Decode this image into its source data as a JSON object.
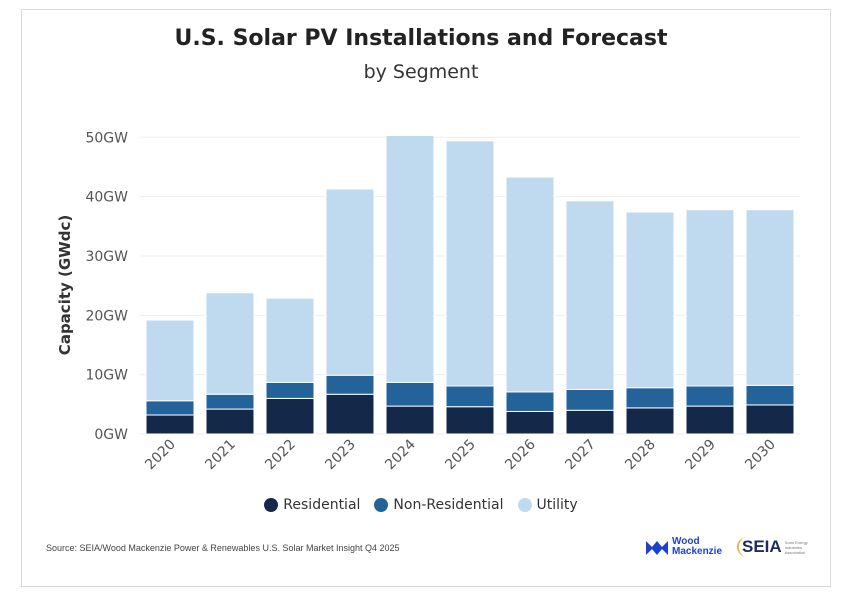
{
  "chart_data": {
    "type": "bar",
    "stacked": true,
    "title": "U.S. Solar PV Installations and Forecast",
    "subtitle": "by Segment",
    "xlabel": "",
    "ylabel": "Capacity (GWdc)",
    "ylim": [
      0,
      50
    ],
    "yticks": [
      "0GW",
      "10GW",
      "20GW",
      "30GW",
      "40GW",
      "50GW"
    ],
    "grid": true,
    "legend_position": "bottom",
    "categories": [
      "2020",
      "2021",
      "2022",
      "2023",
      "2024",
      "2025",
      "2026",
      "2027",
      "2028",
      "2029",
      "2030"
    ],
    "series": [
      {
        "name": "Residential",
        "color": "#14294a",
        "values": [
          3.2,
          4.2,
          6.0,
          6.7,
          4.7,
          4.6,
          3.8,
          4.0,
          4.4,
          4.7,
          4.9
        ]
      },
      {
        "name": "Non-Residential",
        "color": "#236399",
        "values": [
          2.4,
          2.5,
          2.7,
          3.2,
          4.0,
          3.5,
          3.3,
          3.5,
          3.4,
          3.4,
          3.3
        ]
      },
      {
        "name": "Utility",
        "color": "#bfdaef",
        "values": [
          13.6,
          17.1,
          14.2,
          31.4,
          41.6,
          41.3,
          36.2,
          31.8,
          29.6,
          29.7,
          29.6
        ]
      }
    ]
  },
  "source": "Source: SEIA/Wood Mackenzie Power & Renewables U.S. Solar Market Insight Q4 2025",
  "logos": {
    "wood_mackenzie": [
      "Wood",
      "Mackenzie"
    ],
    "seia": "SEIA",
    "seia_sub": "Solar Energy Industries Association"
  }
}
